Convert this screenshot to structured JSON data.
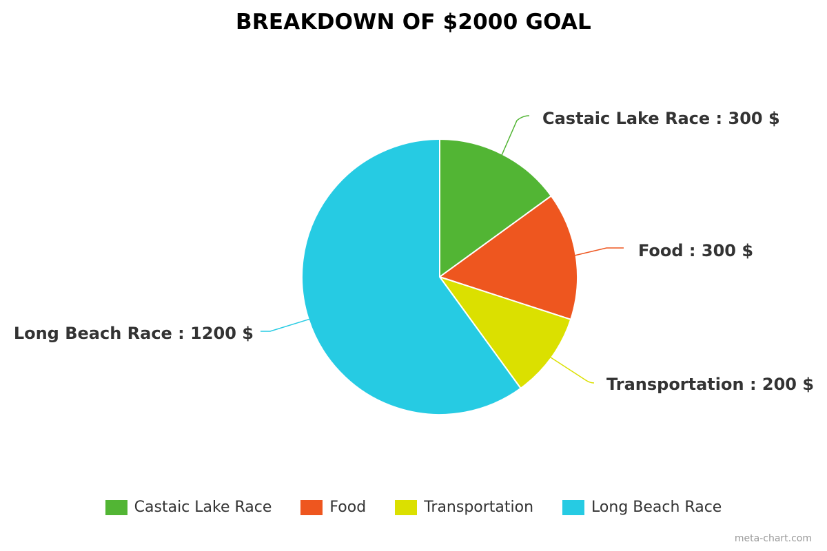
{
  "chart_data": {
    "type": "pie",
    "title": "BREAKDOWN OF $2000 GOAL",
    "categories": [
      "Castaic Lake Race",
      "Food",
      "Transportation",
      "Long Beach Race"
    ],
    "values": [
      300,
      300,
      200,
      1200
    ],
    "value_unit": "$",
    "slice_labels": [
      "Castaic Lake Race : 300 $",
      "Food : 300 $",
      "Transportation : 200 $",
      "Long Beach Race : 1200 $"
    ],
    "colors": [
      "#52b534",
      "#ee561f",
      "#dbe000",
      "#26cbe3"
    ],
    "legend": {
      "position": "bottom",
      "entries": [
        "Castaic Lake Race",
        "Food",
        "Transportation",
        "Long Beach Race"
      ]
    },
    "start_angle_deg": 0,
    "direction": "clockwise"
  },
  "watermark": "meta-chart.com"
}
